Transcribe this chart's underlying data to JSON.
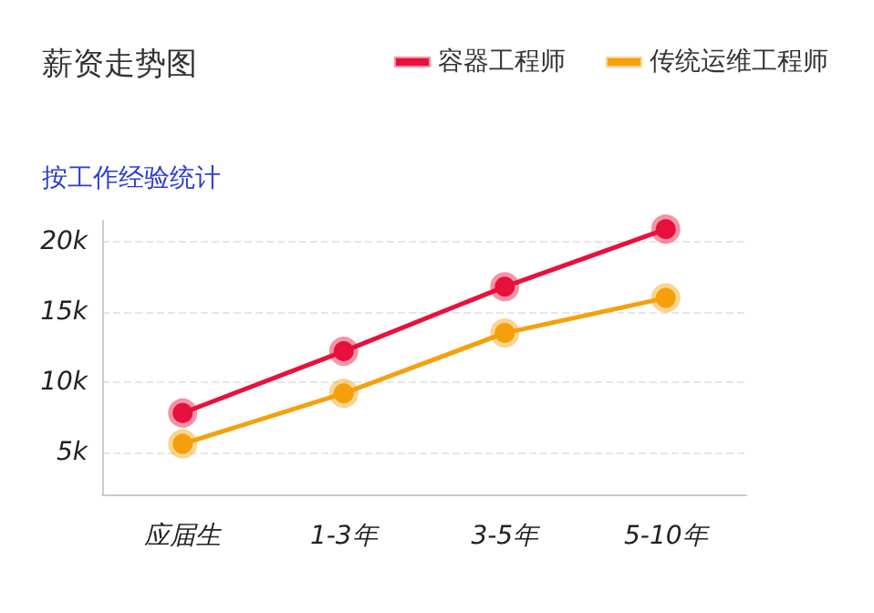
{
  "chart_data": {
    "type": "line",
    "title": "薪资走势图",
    "annotations": [
      "按工作经验统计"
    ],
    "categories": [
      "应届生",
      "1-3年",
      "3-5年",
      "5-10年"
    ],
    "series": [
      {
        "name": "容器工程师",
        "color": "#e8103c",
        "values": [
          7800,
          12200,
          16800,
          20900
        ]
      },
      {
        "name": "传统运维工程师",
        "color": "#f5a00c",
        "values": [
          5600,
          9200,
          13500,
          16000
        ]
      }
    ],
    "ylim": [
      2000,
      21500
    ],
    "yticks": [
      {
        "value": 5000,
        "label": "5k"
      },
      {
        "value": 10000,
        "label": "10k"
      },
      {
        "value": 15000,
        "label": "15k"
      },
      {
        "value": 20000,
        "label": "20k"
      }
    ],
    "grid": "y",
    "legend": "top right",
    "marker": "circle",
    "line_style": "solid"
  }
}
